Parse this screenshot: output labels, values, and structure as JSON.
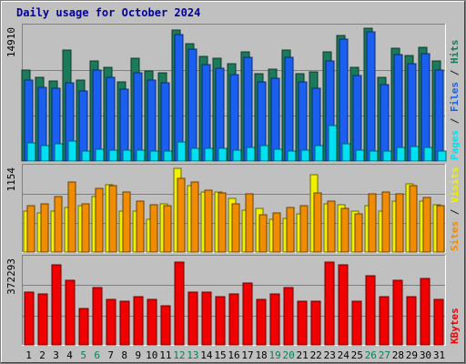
{
  "chart_data": {
    "type": "bar",
    "title": "Daily usage for October 2024",
    "categories": [
      "1",
      "2",
      "3",
      "4",
      "5",
      "6",
      "7",
      "8",
      "9",
      "10",
      "11",
      "12",
      "13",
      "14",
      "15",
      "16",
      "17",
      "18",
      "19",
      "20",
      "21",
      "22",
      "23",
      "24",
      "25",
      "26",
      "27",
      "28",
      "29",
      "30",
      "31"
    ],
    "weekend_days": [
      "5",
      "6",
      "12",
      "13",
      "19",
      "20",
      "26",
      "27"
    ],
    "panels": [
      {
        "id": "hits",
        "ylabel_parts": [
          {
            "text": "Pages",
            "color": "#00e0f0"
          },
          {
            "text": " / ",
            "color": "#202020"
          },
          {
            "text": "Files",
            "color": "#1a5ff0"
          },
          {
            "text": " / ",
            "color": "#202020"
          },
          {
            "text": "Hits",
            "color": "#1a7a5a"
          }
        ],
        "ymax_label": "14910",
        "ymax": 14910,
        "series": [
          {
            "name": "Hits",
            "color": "#1a7a5a",
            "values": [
              10200,
              9400,
              9000,
              12500,
              9100,
              11200,
              10500,
              8900,
              11500,
              10100,
              9900,
              14700,
              13200,
              11700,
              11500,
              10900,
              12300,
              9800,
              10300,
              12500,
              9800,
              10000,
              12300,
              14100,
              10500,
              14900,
              9400,
              12700,
              11800,
              12800,
              11200
            ]
          },
          {
            "name": "Files",
            "color": "#1a5ff0",
            "values": [
              9100,
              8300,
              8200,
              8800,
              7900,
              10200,
              9400,
              8100,
              9900,
              9100,
              8800,
              14200,
              12600,
              10800,
              10400,
              9700,
              11600,
              8900,
              9300,
              11600,
              8900,
              8200,
              11200,
              13700,
              9600,
              14500,
              8600,
              11900,
              10900,
              12000,
              10200
            ]
          },
          {
            "name": "Pages",
            "color": "#00e0f0",
            "values": [
              2000,
              1700,
              1900,
              2200,
              1100,
              1300,
              1200,
              1200,
              1200,
              1100,
              1100,
              2100,
              1400,
              1400,
              1400,
              1200,
              1500,
              1700,
              1300,
              1100,
              1200,
              1700,
              4000,
              1900,
              1200,
              1100,
              1100,
              1500,
              1600,
              1500,
              1100
            ]
          }
        ]
      },
      {
        "id": "visits",
        "ylabel_parts": [
          {
            "text": "Sites",
            "color": "#f08c00"
          },
          {
            "text": " / ",
            "color": "#202020"
          },
          {
            "text": "Visits",
            "color": "#f0f000"
          }
        ],
        "ymax_label": "1154",
        "ymax": 1154,
        "series": [
          {
            "name": "Visits",
            "color": "#f0f000",
            "values": [
              560,
              540,
              560,
              620,
              640,
              770,
              930,
              570,
              570,
              450,
              660,
              1154,
              920,
              830,
              830,
              740,
              580,
              600,
              450,
              460,
              530,
              1070,
              660,
              650,
              560,
              640,
              560,
              700,
              940,
              700,
              650
            ]
          },
          {
            "name": "Sites",
            "color": "#f08c00",
            "values": [
              640,
              660,
              760,
              960,
              660,
              880,
              910,
              830,
              700,
              650,
              640,
              1020,
              960,
              850,
              820,
              660,
              800,
              520,
              540,
              620,
              640,
              820,
              700,
              600,
              530,
              800,
              830,
              800,
              920,
              750,
              640
            ]
          }
        ]
      },
      {
        "id": "kbytes",
        "ylabel_parts": [
          {
            "text": "KBytes",
            "color": "#f00000"
          }
        ],
        "ymax_label": "372293",
        "ymax": 372293,
        "series": [
          {
            "name": "KBytes",
            "color": "#f00000",
            "values": [
              230000,
              220000,
              350000,
              280000,
              160000,
              250000,
              200000,
              190000,
              210000,
              200000,
              170000,
              360000,
              230000,
              230000,
              210000,
              220000,
              270000,
              200000,
              220000,
              250000,
              190000,
              190000,
              360000,
              350000,
              190000,
              300000,
              210000,
              280000,
              210000,
              290000,
              200000
            ]
          }
        ]
      }
    ]
  }
}
